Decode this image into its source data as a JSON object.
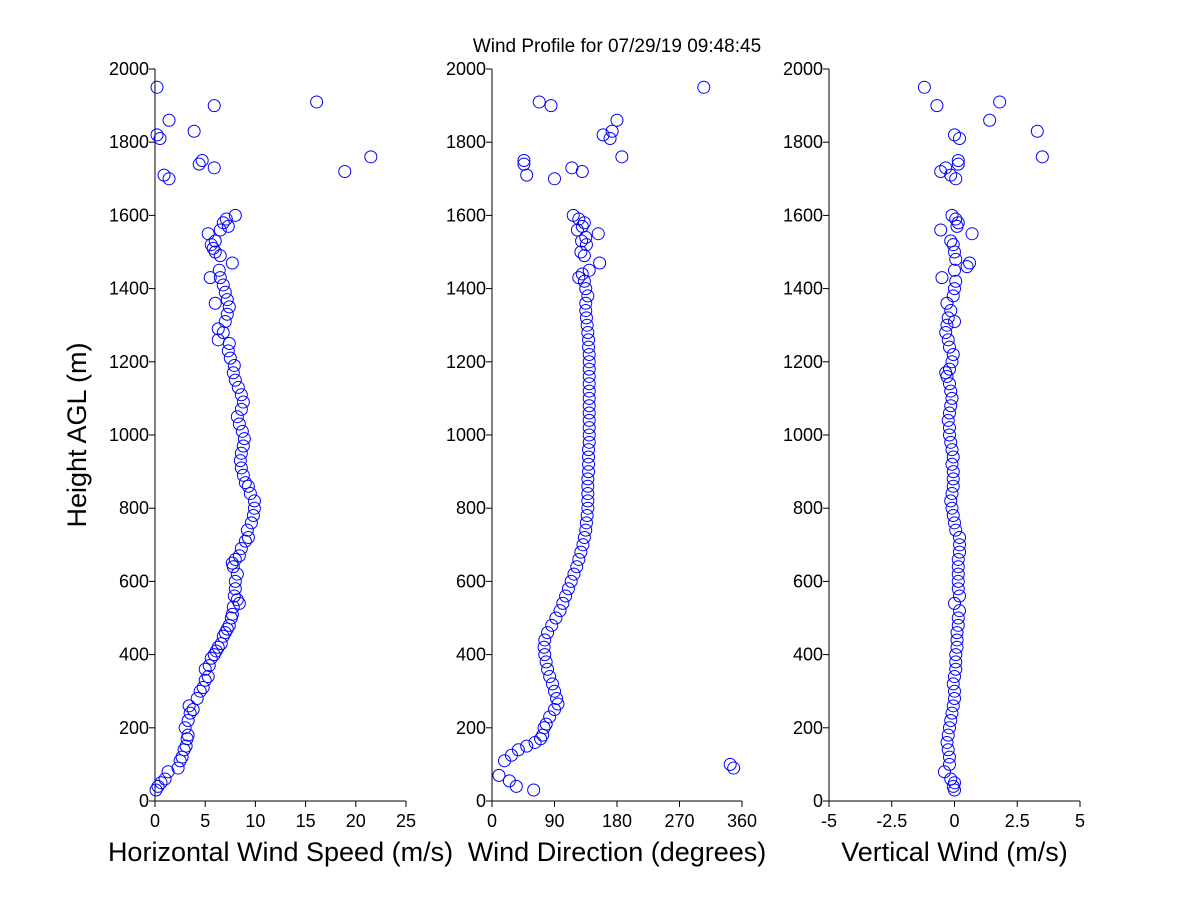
{
  "title": "Wind Profile for  07/29/19 09:48:45",
  "marker_color": "#0000ff",
  "ylabel": "Height AGL (m)",
  "chart_data": [
    {
      "type": "scatter",
      "xlabel": "Horizontal Wind Speed (m/s)",
      "ylabel": "Height AGL (m)",
      "xlim": [
        0,
        25
      ],
      "ylim": [
        0,
        2000
      ],
      "xticks": [
        0,
        5,
        10,
        15,
        20,
        25
      ],
      "xtick_labels": [
        "0",
        "5",
        "10",
        "15",
        "20",
        "25"
      ],
      "yticks": [
        0,
        200,
        400,
        600,
        800,
        1000,
        1200,
        1400,
        1600,
        1800,
        2000
      ],
      "grid": false,
      "points": [
        [
          0.1,
          30
        ],
        [
          0.3,
          40
        ],
        [
          0.6,
          50
        ],
        [
          1.0,
          60
        ],
        [
          1.3,
          80
        ],
        [
          2.3,
          90
        ],
        [
          2.5,
          110
        ],
        [
          2.7,
          120
        ],
        [
          2.9,
          140
        ],
        [
          3.1,
          150
        ],
        [
          3.2,
          170
        ],
        [
          3.3,
          180
        ],
        [
          3.0,
          200
        ],
        [
          3.3,
          220
        ],
        [
          3.5,
          240
        ],
        [
          3.8,
          250
        ],
        [
          3.4,
          260
        ],
        [
          4.2,
          280
        ],
        [
          4.5,
          300
        ],
        [
          4.8,
          310
        ],
        [
          5.0,
          330
        ],
        [
          5.3,
          340
        ],
        [
          5.0,
          360
        ],
        [
          5.4,
          370
        ],
        [
          5.6,
          390
        ],
        [
          5.9,
          400
        ],
        [
          6.1,
          410
        ],
        [
          6.3,
          420
        ],
        [
          6.6,
          430
        ],
        [
          6.8,
          450
        ],
        [
          7.0,
          460
        ],
        [
          7.2,
          470
        ],
        [
          7.4,
          480
        ],
        [
          7.6,
          500
        ],
        [
          7.7,
          510
        ],
        [
          7.8,
          530
        ],
        [
          8.4,
          540
        ],
        [
          8.2,
          550
        ],
        [
          7.9,
          560
        ],
        [
          8.0,
          580
        ],
        [
          8.0,
          600
        ],
        [
          8.2,
          620
        ],
        [
          7.8,
          640
        ],
        [
          7.7,
          650
        ],
        [
          8.0,
          660
        ],
        [
          8.4,
          670
        ],
        [
          8.6,
          690
        ],
        [
          9.0,
          710
        ],
        [
          9.3,
          720
        ],
        [
          9.2,
          740
        ],
        [
          9.6,
          760
        ],
        [
          9.8,
          780
        ],
        [
          9.9,
          800
        ],
        [
          9.9,
          820
        ],
        [
          9.5,
          840
        ],
        [
          9.3,
          860
        ],
        [
          9.0,
          870
        ],
        [
          8.8,
          890
        ],
        [
          8.6,
          910
        ],
        [
          8.5,
          930
        ],
        [
          8.6,
          950
        ],
        [
          8.8,
          970
        ],
        [
          8.9,
          990
        ],
        [
          8.7,
          1010
        ],
        [
          8.4,
          1030
        ],
        [
          8.2,
          1050
        ],
        [
          8.6,
          1070
        ],
        [
          8.8,
          1090
        ],
        [
          8.6,
          1110
        ],
        [
          8.3,
          1130
        ],
        [
          8.0,
          1150
        ],
        [
          7.8,
          1170
        ],
        [
          7.9,
          1190
        ],
        [
          7.5,
          1210
        ],
        [
          7.3,
          1230
        ],
        [
          7.4,
          1250
        ],
        [
          6.3,
          1260
        ],
        [
          6.8,
          1280
        ],
        [
          6.3,
          1290
        ],
        [
          7.0,
          1310
        ],
        [
          7.2,
          1330
        ],
        [
          7.4,
          1350
        ],
        [
          6.0,
          1360
        ],
        [
          7.2,
          1370
        ],
        [
          7.0,
          1390
        ],
        [
          6.8,
          1410
        ],
        [
          6.5,
          1430
        ],
        [
          5.5,
          1430
        ],
        [
          6.4,
          1450
        ],
        [
          7.7,
          1470
        ],
        [
          6.5,
          1490
        ],
        [
          6.0,
          1500
        ],
        [
          5.8,
          1510
        ],
        [
          5.6,
          1520
        ],
        [
          6.0,
          1530
        ],
        [
          5.3,
          1550
        ],
        [
          6.5,
          1560
        ],
        [
          7.3,
          1570
        ],
        [
          6.8,
          1580
        ],
        [
          7.1,
          1590
        ],
        [
          8.0,
          1600
        ],
        [
          1.4,
          1700
        ],
        [
          0.9,
          1710
        ],
        [
          18.9,
          1720
        ],
        [
          5.9,
          1730
        ],
        [
          4.4,
          1740
        ],
        [
          4.7,
          1750
        ],
        [
          21.5,
          1760
        ],
        [
          0.5,
          1810
        ],
        [
          0.2,
          1820
        ],
        [
          3.9,
          1830
        ],
        [
          1.4,
          1860
        ],
        [
          5.9,
          1900
        ],
        [
          16.1,
          1910
        ],
        [
          0.2,
          1950
        ]
      ]
    },
    {
      "type": "scatter",
      "xlabel": "Wind Direction (degrees)",
      "ylabel": "",
      "xlim": [
        0,
        360
      ],
      "ylim": [
        0,
        2000
      ],
      "xticks": [
        0,
        90,
        180,
        270,
        360
      ],
      "xtick_labels": [
        "0",
        "90",
        "180",
        "270",
        "360"
      ],
      "yticks": [
        0,
        200,
        400,
        600,
        800,
        1000,
        1200,
        1400,
        1600,
        1800,
        2000
      ],
      "grid": false,
      "points": [
        [
          60,
          30
        ],
        [
          35,
          40
        ],
        [
          25,
          55
        ],
        [
          10,
          70
        ],
        [
          348,
          90
        ],
        [
          343,
          100
        ],
        [
          18,
          110
        ],
        [
          28,
          125
        ],
        [
          38,
          140
        ],
        [
          50,
          150
        ],
        [
          62,
          160
        ],
        [
          70,
          170
        ],
        [
          73,
          180
        ],
        [
          75,
          200
        ],
        [
          78,
          210
        ],
        [
          83,
          230
        ],
        [
          90,
          250
        ],
        [
          95,
          265
        ],
        [
          93,
          280
        ],
        [
          90,
          300
        ],
        [
          87,
          320
        ],
        [
          83,
          340
        ],
        [
          80,
          360
        ],
        [
          78,
          380
        ],
        [
          76,
          400
        ],
        [
          75,
          420
        ],
        [
          76,
          440
        ],
        [
          80,
          460
        ],
        [
          86,
          480
        ],
        [
          92,
          500
        ],
        [
          98,
          520
        ],
        [
          102,
          540
        ],
        [
          106,
          560
        ],
        [
          110,
          580
        ],
        [
          114,
          600
        ],
        [
          118,
          620
        ],
        [
          122,
          640
        ],
        [
          125,
          660
        ],
        [
          128,
          680
        ],
        [
          131,
          700
        ],
        [
          133,
          720
        ],
        [
          135,
          740
        ],
        [
          136,
          760
        ],
        [
          137,
          780
        ],
        [
          138,
          800
        ],
        [
          138,
          820
        ],
        [
          138,
          840
        ],
        [
          138,
          860
        ],
        [
          138,
          880
        ],
        [
          139,
          900
        ],
        [
          139,
          920
        ],
        [
          139,
          940
        ],
        [
          139,
          960
        ],
        [
          140,
          980
        ],
        [
          140,
          1000
        ],
        [
          140,
          1020
        ],
        [
          140,
          1040
        ],
        [
          140,
          1060
        ],
        [
          140,
          1080
        ],
        [
          140,
          1100
        ],
        [
          140,
          1120
        ],
        [
          140,
          1140
        ],
        [
          140,
          1160
        ],
        [
          140,
          1180
        ],
        [
          140,
          1200
        ],
        [
          140,
          1220
        ],
        [
          139,
          1240
        ],
        [
          139,
          1260
        ],
        [
          138,
          1280
        ],
        [
          137,
          1300
        ],
        [
          136,
          1320
        ],
        [
          135,
          1340
        ],
        [
          135,
          1360
        ],
        [
          138,
          1380
        ],
        [
          135,
          1400
        ],
        [
          133,
          1420
        ],
        [
          125,
          1430
        ],
        [
          130,
          1440
        ],
        [
          140,
          1450
        ],
        [
          155,
          1470
        ],
        [
          133,
          1490
        ],
        [
          128,
          1500
        ],
        [
          136,
          1520
        ],
        [
          129,
          1530
        ],
        [
          135,
          1540
        ],
        [
          153,
          1550
        ],
        [
          123,
          1560
        ],
        [
          130,
          1570
        ],
        [
          133,
          1580
        ],
        [
          125,
          1590
        ],
        [
          117,
          1600
        ],
        [
          90,
          1700
        ],
        [
          50,
          1710
        ],
        [
          130,
          1720
        ],
        [
          115,
          1730
        ],
        [
          46,
          1740
        ],
        [
          46,
          1750
        ],
        [
          187,
          1760
        ],
        [
          170,
          1810
        ],
        [
          160,
          1820
        ],
        [
          173,
          1830
        ],
        [
          180,
          1860
        ],
        [
          85,
          1900
        ],
        [
          68,
          1910
        ],
        [
          305,
          1950
        ]
      ]
    },
    {
      "type": "scatter",
      "xlabel": "Vertical Wind (m/s)",
      "ylabel": "",
      "xlim": [
        -5,
        5
      ],
      "ylim": [
        0,
        2000
      ],
      "xticks": [
        -5,
        -2.5,
        0,
        2.5,
        5
      ],
      "xtick_labels": [
        "-5",
        "-2.5",
        "0",
        "2.5",
        "5"
      ],
      "yticks": [
        0,
        200,
        400,
        600,
        800,
        1000,
        1200,
        1400,
        1600,
        1800,
        2000
      ],
      "grid": false,
      "points": [
        [
          0.0,
          30
        ],
        [
          -0.05,
          40
        ],
        [
          0.0,
          50
        ],
        [
          -0.15,
          60
        ],
        [
          -0.4,
          80
        ],
        [
          -0.2,
          100
        ],
        [
          -0.2,
          120
        ],
        [
          -0.25,
          140
        ],
        [
          -0.3,
          160
        ],
        [
          -0.25,
          180
        ],
        [
          -0.2,
          200
        ],
        [
          -0.15,
          220
        ],
        [
          -0.1,
          240
        ],
        [
          -0.05,
          260
        ],
        [
          0.0,
          280
        ],
        [
          0.0,
          300
        ],
        [
          -0.05,
          320
        ],
        [
          0.0,
          340
        ],
        [
          0.05,
          360
        ],
        [
          0.05,
          380
        ],
        [
          0.05,
          400
        ],
        [
          0.1,
          420
        ],
        [
          0.1,
          440
        ],
        [
          0.1,
          460
        ],
        [
          0.15,
          480
        ],
        [
          0.15,
          500
        ],
        [
          0.2,
          520
        ],
        [
          0.0,
          540
        ],
        [
          0.2,
          560
        ],
        [
          0.15,
          580
        ],
        [
          0.15,
          600
        ],
        [
          0.15,
          620
        ],
        [
          0.15,
          640
        ],
        [
          0.15,
          660
        ],
        [
          0.2,
          680
        ],
        [
          0.2,
          700
        ],
        [
          0.2,
          720
        ],
        [
          0.05,
          740
        ],
        [
          0.0,
          760
        ],
        [
          -0.05,
          780
        ],
        [
          -0.1,
          800
        ],
        [
          -0.15,
          820
        ],
        [
          -0.1,
          840
        ],
        [
          -0.05,
          860
        ],
        [
          -0.05,
          880
        ],
        [
          -0.05,
          900
        ],
        [
          -0.1,
          920
        ],
        [
          -0.05,
          940
        ],
        [
          -0.1,
          960
        ],
        [
          -0.15,
          980
        ],
        [
          -0.2,
          1000
        ],
        [
          -0.2,
          1020
        ],
        [
          -0.25,
          1040
        ],
        [
          -0.2,
          1060
        ],
        [
          -0.15,
          1080
        ],
        [
          -0.1,
          1100
        ],
        [
          -0.15,
          1120
        ],
        [
          -0.2,
          1140
        ],
        [
          -0.3,
          1160
        ],
        [
          -0.35,
          1170
        ],
        [
          -0.2,
          1180
        ],
        [
          -0.1,
          1200
        ],
        [
          -0.05,
          1220
        ],
        [
          -0.2,
          1240
        ],
        [
          -0.25,
          1260
        ],
        [
          -0.35,
          1280
        ],
        [
          -0.3,
          1300
        ],
        [
          0.0,
          1310
        ],
        [
          -0.25,
          1320
        ],
        [
          -0.15,
          1340
        ],
        [
          -0.3,
          1360
        ],
        [
          -0.05,
          1380
        ],
        [
          0.0,
          1400
        ],
        [
          0.05,
          1420
        ],
        [
          -0.5,
          1430
        ],
        [
          0.0,
          1450
        ],
        [
          0.5,
          1460
        ],
        [
          0.6,
          1470
        ],
        [
          0.05,
          1480
        ],
        [
          0.0,
          1500
        ],
        [
          -0.05,
          1520
        ],
        [
          -0.15,
          1530
        ],
        [
          0.7,
          1550
        ],
        [
          -0.55,
          1560
        ],
        [
          0.1,
          1570
        ],
        [
          0.15,
          1580
        ],
        [
          0.05,
          1590
        ],
        [
          -0.1,
          1600
        ],
        [
          0.05,
          1700
        ],
        [
          -0.15,
          1710
        ],
        [
          -0.55,
          1720
        ],
        [
          -0.35,
          1730
        ],
        [
          0.15,
          1740
        ],
        [
          0.15,
          1750
        ],
        [
          3.5,
          1760
        ],
        [
          0.2,
          1810
        ],
        [
          0.0,
          1820
        ],
        [
          3.3,
          1830
        ],
        [
          1.4,
          1860
        ],
        [
          -0.7,
          1900
        ],
        [
          1.8,
          1910
        ],
        [
          -1.2,
          1950
        ]
      ]
    }
  ]
}
